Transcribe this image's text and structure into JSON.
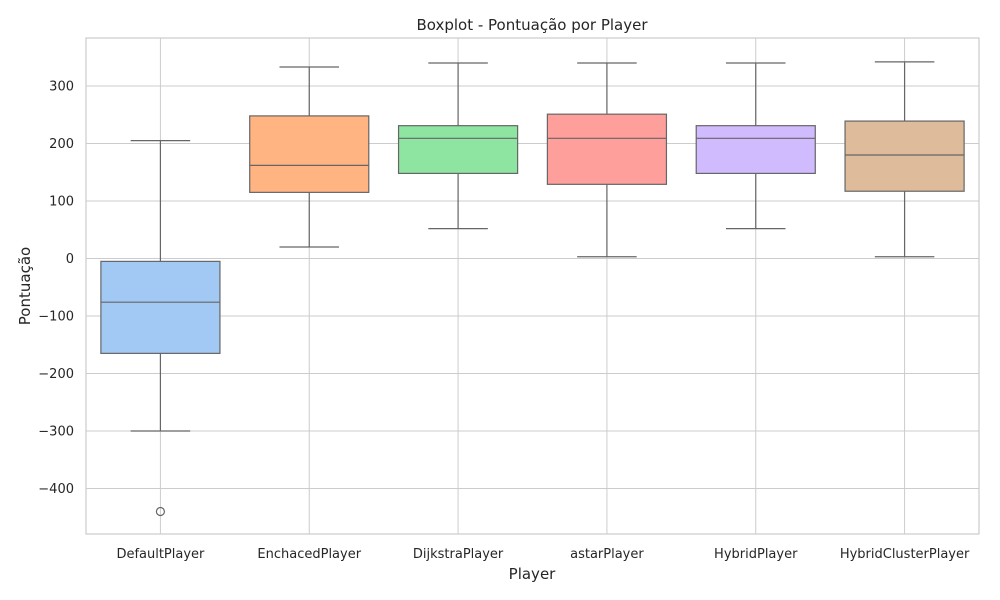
{
  "chart_data": {
    "type": "boxplot",
    "title": "Boxplot - Pontuação por Player",
    "xlabel": "Player",
    "ylabel": "Pontuação",
    "ylim": [
      -480,
      385
    ],
    "yticks": [
      300,
      200,
      100,
      0,
      -100,
      -200,
      -300,
      -400
    ],
    "ytick_labels": [
      "300",
      "200",
      "100",
      "0",
      "−100",
      "−200",
      "−300",
      "−400"
    ],
    "grid": true,
    "categories": [
      "DefaultPlayer",
      "EnchacedPlayer",
      "DijkstraPlayer",
      "astarPlayer",
      "HybridPlayer",
      "HybridClusterPlayer"
    ],
    "boxes": [
      {
        "name": "DefaultPlayer",
        "whisker_low": -300,
        "q1": -165,
        "median": -76,
        "q3": -5,
        "whisker_high": 205,
        "outliers": [
          -440
        ],
        "color": "#a1c9f4"
      },
      {
        "name": "EnchacedPlayer",
        "whisker_low": 20,
        "q1": 115,
        "median": 162,
        "q3": 248,
        "whisker_high": 333,
        "outliers": [],
        "color": "#ffb482"
      },
      {
        "name": "DijkstraPlayer",
        "whisker_low": 52,
        "q1": 148,
        "median": 209,
        "q3": 231,
        "whisker_high": 340,
        "outliers": [],
        "color": "#8de5a1"
      },
      {
        "name": "astarPlayer",
        "whisker_low": 3,
        "q1": 129,
        "median": 209,
        "q3": 251,
        "whisker_high": 340,
        "outliers": [],
        "color": "#ff9f9b"
      },
      {
        "name": "HybridPlayer",
        "whisker_low": 52,
        "q1": 148,
        "median": 209,
        "q3": 231,
        "whisker_high": 340,
        "outliers": [],
        "color": "#d0bbff"
      },
      {
        "name": "HybridClusterPlayer",
        "whisker_low": 3,
        "q1": 117,
        "median": 180,
        "q3": 239,
        "whisker_high": 342,
        "outliers": [],
        "color": "#debb9b"
      }
    ]
  }
}
